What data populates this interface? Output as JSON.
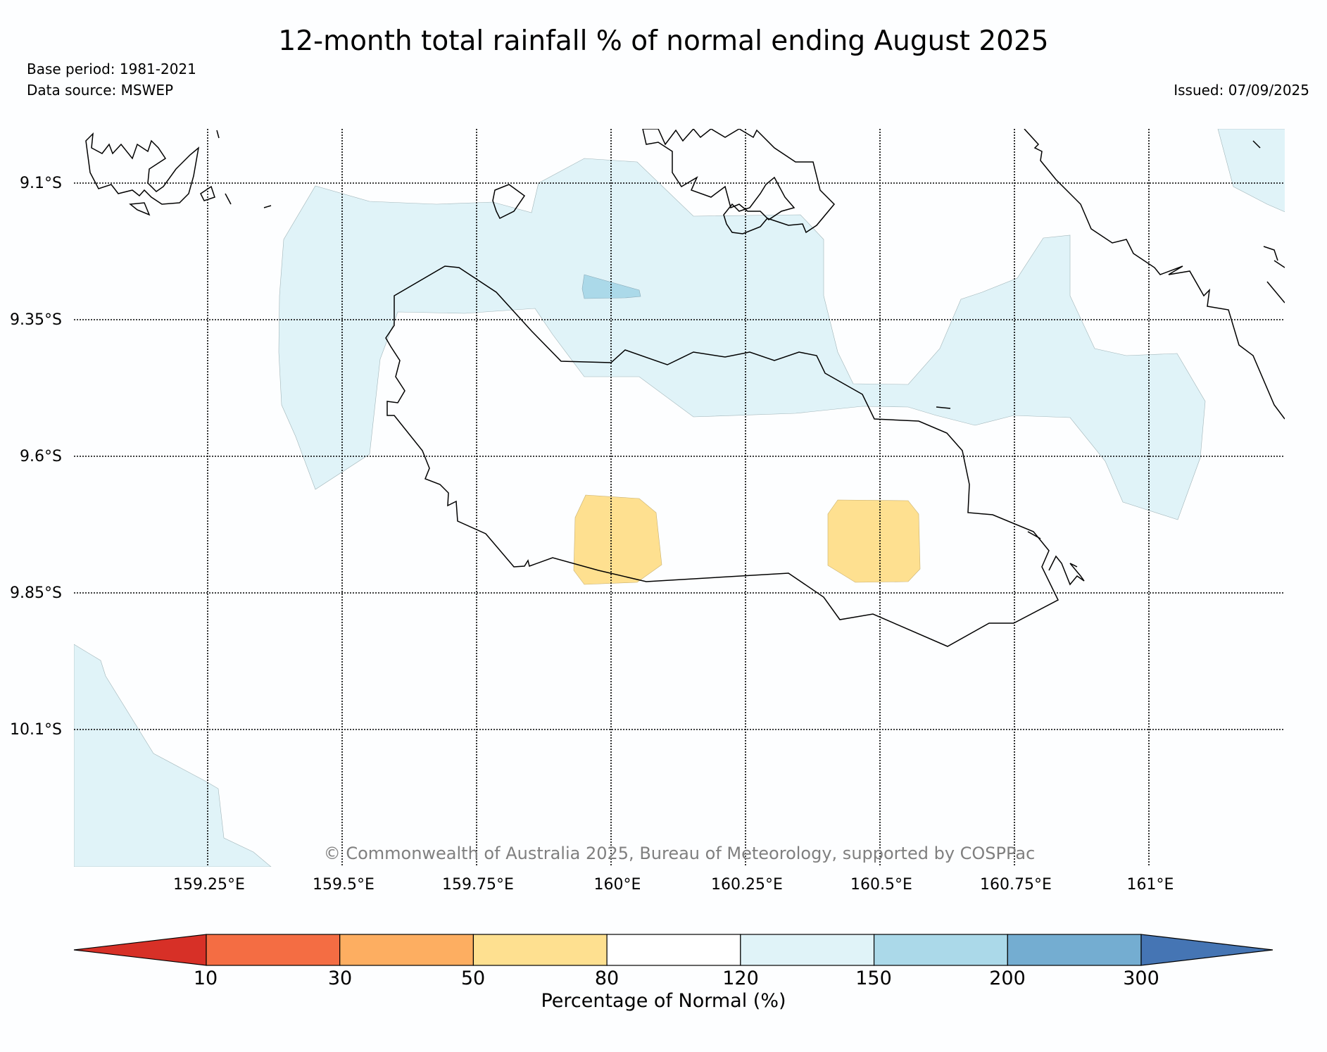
{
  "title": "12-month total rainfall % of normal ending August 2025",
  "base_period": "Base period: 1981-2021",
  "data_source": "Data source: MSWEP",
  "issued": "Issued: 07/09/2025",
  "copyright": "© Commonwealth of Australia 2025, Bureau of Meteorology, supported by COSPPac",
  "lat_labels": [
    "9.1°S",
    "9.35°S",
    "9.6°S",
    "9.85°S",
    "10.1°S"
  ],
  "lon_labels": [
    "159.25°E",
    "159.5°E",
    "159.75°E",
    "160°E",
    "160.25°E",
    "160.5°E",
    "160.75°E",
    "161°E"
  ],
  "colorbar": {
    "title": "Percentage of Normal (%)",
    "ticks": [
      "10",
      "30",
      "50",
      "80",
      "120",
      "150",
      "200",
      "300"
    ],
    "colors": [
      "#d73027",
      "#f46d43",
      "#fdae61",
      "#fee090",
      "#ffffff",
      "#e0f3f8",
      "#abd9e9",
      "#74add1",
      "#4575b4"
    ]
  },
  "legend_colors": {
    "band_120_150": "#e0f3f8",
    "band_150_200": "#abd9e9",
    "band_50_80": "#fee090",
    "coastline": "#000000"
  }
}
